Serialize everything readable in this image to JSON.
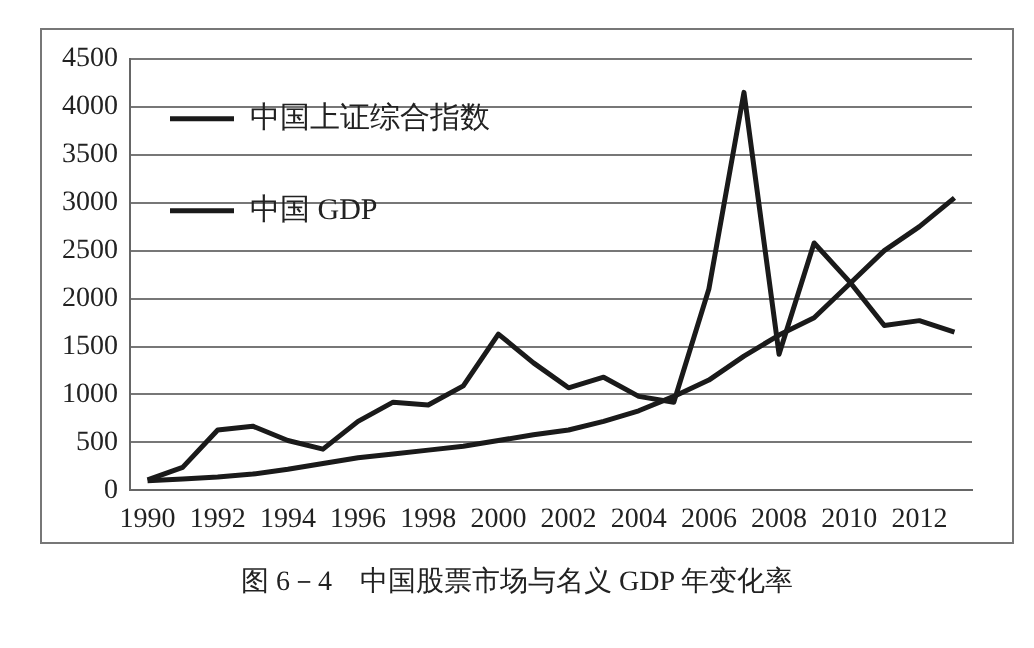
{
  "chart_data": {
    "type": "line",
    "categories": [
      "1990",
      null,
      "1992",
      null,
      "1994",
      null,
      "1996",
      null,
      "1998",
      null,
      "2000",
      null,
      "2002",
      null,
      "2004",
      null,
      "2006",
      null,
      "2008",
      null,
      "2010",
      null,
      "2012",
      null
    ],
    "series": [
      {
        "name": "中国上证综合指数",
        "color": "#1a1a1a",
        "values": [
          110,
          240,
          630,
          670,
          520,
          430,
          720,
          920,
          890,
          1090,
          1630,
          1330,
          1070,
          1180,
          980,
          920,
          2100,
          4150,
          1420,
          2580,
          2180,
          1720,
          1770,
          1650
        ]
      },
      {
        "name": "中国 GDP",
        "color": "#1a1a1a",
        "values": [
          100,
          120,
          140,
          170,
          220,
          280,
          340,
          380,
          420,
          460,
          520,
          580,
          630,
          720,
          830,
          980,
          1150,
          1400,
          1620,
          1800,
          2150,
          2500,
          2750,
          3050
        ]
      }
    ],
    "ylim": [
      0,
      4500
    ],
    "yticks": [
      0,
      500,
      1000,
      1500,
      2000,
      2500,
      3000,
      3500,
      4000,
      4500
    ],
    "grid": "y",
    "legend": "top left",
    "marker": "none",
    "line_style": "solid",
    "annotations": [
      "图 6－4　中国股票市场与名义 GDP 年变化率"
    ]
  }
}
